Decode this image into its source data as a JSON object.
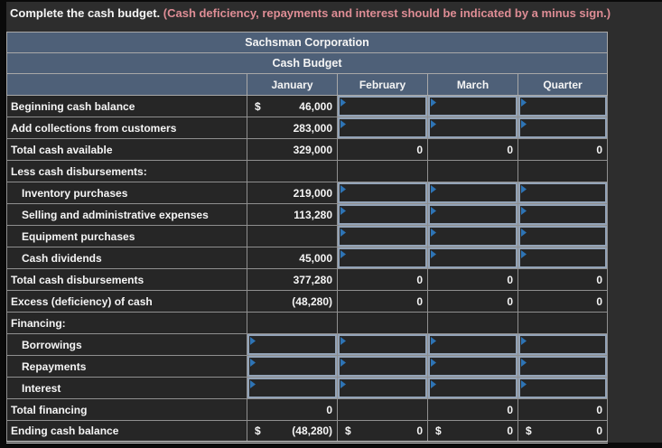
{
  "instruction": {
    "main": "Complete the cash budget.",
    "note": "(Cash deficiency, repayments and interest should be indicated by a minus sign.)"
  },
  "table": {
    "title": "Sachsman Corporation",
    "subtitle": "Cash Budget",
    "columns": [
      "January",
      "February",
      "March",
      "Quarter"
    ],
    "rows": [
      {
        "label": "Beginning cash balance",
        "indent": false,
        "cells": [
          {
            "type": "static",
            "prefix": "$",
            "value": "46,000"
          },
          {
            "type": "input"
          },
          {
            "type": "input"
          },
          {
            "type": "input"
          }
        ]
      },
      {
        "label": "Add collections from customers",
        "indent": false,
        "cells": [
          {
            "type": "static",
            "value": "283,000"
          },
          {
            "type": "input"
          },
          {
            "type": "input"
          },
          {
            "type": "input"
          }
        ]
      },
      {
        "label": "Total cash available",
        "indent": false,
        "cells": [
          {
            "type": "static",
            "value": "329,000"
          },
          {
            "type": "static",
            "value": "0"
          },
          {
            "type": "static",
            "value": "0"
          },
          {
            "type": "static",
            "value": "0"
          }
        ]
      },
      {
        "label": "Less cash disbursements:",
        "indent": false,
        "cells": [
          {
            "type": "blank"
          },
          {
            "type": "blank"
          },
          {
            "type": "blank"
          },
          {
            "type": "blank"
          }
        ]
      },
      {
        "label": "Inventory purchases",
        "indent": true,
        "cells": [
          {
            "type": "static",
            "value": "219,000"
          },
          {
            "type": "input"
          },
          {
            "type": "input"
          },
          {
            "type": "input"
          }
        ]
      },
      {
        "label": "Selling and administrative expenses",
        "indent": true,
        "cells": [
          {
            "type": "static",
            "value": "113,280"
          },
          {
            "type": "input"
          },
          {
            "type": "input"
          },
          {
            "type": "input"
          }
        ]
      },
      {
        "label": "Equipment purchases",
        "indent": true,
        "cells": [
          {
            "type": "blank"
          },
          {
            "type": "input"
          },
          {
            "type": "input"
          },
          {
            "type": "input"
          }
        ]
      },
      {
        "label": "Cash dividends",
        "indent": true,
        "cells": [
          {
            "type": "static",
            "value": "45,000"
          },
          {
            "type": "input"
          },
          {
            "type": "input"
          },
          {
            "type": "input"
          }
        ]
      },
      {
        "label": "Total cash disbursements",
        "indent": false,
        "cells": [
          {
            "type": "static",
            "value": "377,280"
          },
          {
            "type": "static",
            "value": "0"
          },
          {
            "type": "static",
            "value": "0"
          },
          {
            "type": "static",
            "value": "0"
          }
        ]
      },
      {
        "label": "Excess (deficiency) of cash",
        "indent": false,
        "cells": [
          {
            "type": "static",
            "value": "(48,280)"
          },
          {
            "type": "static",
            "value": "0"
          },
          {
            "type": "static",
            "value": "0"
          },
          {
            "type": "static",
            "value": "0"
          }
        ]
      },
      {
        "label": "Financing:",
        "indent": false,
        "cells": [
          {
            "type": "blank"
          },
          {
            "type": "blank"
          },
          {
            "type": "blank"
          },
          {
            "type": "blank"
          }
        ]
      },
      {
        "label": "Borrowings",
        "indent": true,
        "cells": [
          {
            "type": "input"
          },
          {
            "type": "input"
          },
          {
            "type": "input"
          },
          {
            "type": "input"
          }
        ]
      },
      {
        "label": "Repayments",
        "indent": true,
        "cells": [
          {
            "type": "input"
          },
          {
            "type": "input"
          },
          {
            "type": "input"
          },
          {
            "type": "input"
          }
        ]
      },
      {
        "label": "Interest",
        "indent": true,
        "cells": [
          {
            "type": "input"
          },
          {
            "type": "input"
          },
          {
            "type": "input"
          },
          {
            "type": "input"
          }
        ]
      },
      {
        "label": "Total financing",
        "indent": false,
        "cells": [
          {
            "type": "static",
            "value": "0"
          },
          {
            "type": "blank"
          },
          {
            "type": "static",
            "value": "0"
          },
          {
            "type": "static",
            "value": "0"
          }
        ]
      },
      {
        "label": "Ending cash balance",
        "indent": false,
        "cells": [
          {
            "type": "static",
            "prefix": "$",
            "value": "(48,280)"
          },
          {
            "type": "static",
            "prefix": "$",
            "value": "0"
          },
          {
            "type": "static",
            "prefix": "$",
            "value": "0"
          },
          {
            "type": "static",
            "prefix": "$",
            "value": "0"
          }
        ]
      }
    ]
  },
  "colors": {
    "header_bg": "#4e6078",
    "note_text": "#de8d95",
    "page_bg": "#2d2d2d",
    "cell_bg": "#262626",
    "grid_line": "#8f8f8f",
    "input_border": "#93a3b7",
    "flag_blue": "#2e74b5",
    "text": "#f5f5f5"
  }
}
